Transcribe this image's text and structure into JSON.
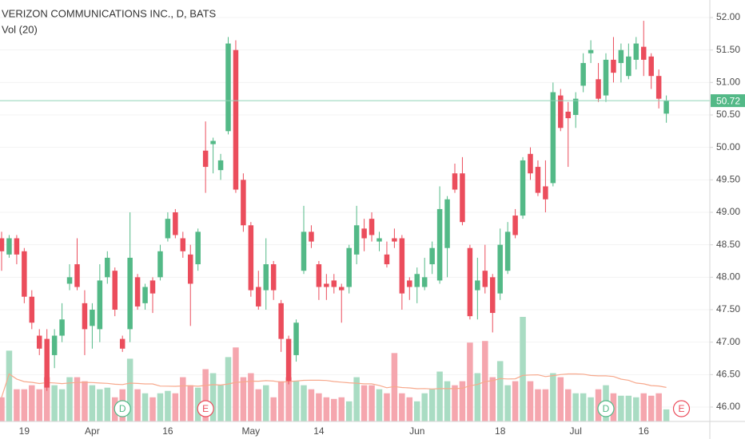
{
  "chart_data": {
    "type": "candlestick",
    "title": "VERIZON COMMUNICATIONS INC., D, BATS",
    "volume_title": "Vol (20)",
    "categories": [
      null,
      null,
      null,
      "19",
      null,
      null,
      null,
      null,
      null,
      null,
      null,
      null,
      "Apr",
      null,
      null,
      null,
      null,
      null,
      null,
      null,
      null,
      null,
      "16",
      null,
      null,
      null,
      null,
      null,
      null,
      null,
      null,
      null,
      null,
      "May",
      null,
      null,
      null,
      null,
      null,
      null,
      null,
      null,
      "14",
      null,
      null,
      null,
      null,
      null,
      null,
      null,
      null,
      null,
      null,
      null,
      null,
      "Jun",
      null,
      null,
      null,
      null,
      null,
      null,
      null,
      null,
      null,
      null,
      "18",
      null,
      null,
      null,
      null,
      null,
      null,
      null,
      null,
      null,
      "Jul",
      null,
      null,
      null,
      null,
      null,
      null,
      null,
      null,
      "16",
      null,
      null,
      null
    ],
    "open": [
      48.6,
      48.35,
      48.6,
      48.4,
      47.7,
      47.1,
      47.05,
      46.8,
      47.1,
      47.9,
      48.2,
      47.6,
      47.25,
      47.2,
      48.0,
      48.1,
      47.05,
      47.2,
      48.0,
      47.6,
      47.95,
      48.0,
      48.6,
      49.0,
      48.6,
      48.35,
      48.2,
      49.95,
      50.05,
      49.65,
      50.25,
      51.5,
      49.5,
      48.8,
      47.85,
      47.8,
      48.2,
      47.6,
      47.05,
      46.8,
      48.1,
      48.7,
      48.2,
      47.9,
      47.95,
      47.85,
      47.85,
      48.35,
      48.75,
      48.9,
      48.55,
      48.35,
      48.6,
      48.6,
      47.95,
      47.85,
      47.85,
      48.2,
      47.95,
      48.45,
      49.6,
      49.6,
      48.45,
      47.8,
      48.1,
      48.0,
      47.75,
      48.1,
      48.95,
      48.95,
      49.9,
      49.7,
      49.4,
      49.45,
      50.8,
      50.55,
      50.5,
      50.95,
      51.45,
      51.05,
      50.8,
      51.35,
      51.3,
      51.1,
      51.35,
      51.55,
      51.4,
      51.1,
      50.52
    ],
    "high": [
      48.7,
      48.65,
      48.65,
      48.45,
      47.8,
      47.2,
      47.2,
      47.2,
      47.6,
      48.2,
      48.6,
      47.8,
      47.6,
      48.2,
      48.4,
      48.15,
      47.1,
      49.0,
      48.05,
      47.9,
      48.0,
      48.5,
      49.0,
      49.05,
      48.7,
      48.5,
      48.75,
      50.4,
      50.15,
      49.9,
      51.7,
      51.65,
      49.6,
      48.85,
      48.1,
      48.6,
      48.25,
      47.65,
      47.1,
      47.35,
      49.1,
      48.8,
      48.25,
      48.05,
      48.05,
      47.9,
      48.5,
      49.1,
      48.9,
      49.0,
      48.7,
      48.55,
      48.75,
      48.65,
      48.0,
      48.15,
      48.3,
      48.55,
      49.4,
      49.25,
      49.75,
      49.85,
      48.5,
      48.3,
      48.5,
      48.05,
      48.75,
      48.85,
      49.05,
      49.85,
      50.0,
      49.8,
      49.8,
      51.0,
      50.9,
      50.7,
      50.85,
      51.45,
      51.65,
      51.3,
      51.45,
      51.7,
      51.6,
      51.6,
      51.7,
      51.95,
      51.45,
      51.2,
      50.8
    ],
    "low": [
      48.1,
      48.3,
      48.2,
      47.6,
      47.2,
      46.8,
      46.25,
      46.6,
      47.0,
      47.8,
      47.8,
      46.8,
      46.9,
      47.0,
      47.9,
      47.4,
      46.85,
      47.0,
      47.5,
      47.5,
      47.45,
      47.95,
      48.55,
      48.6,
      48.3,
      47.25,
      48.1,
      49.3,
      49.6,
      49.5,
      50.2,
      49.3,
      48.7,
      47.7,
      47.5,
      47.5,
      47.65,
      46.85,
      46.35,
      46.7,
      48.05,
      48.45,
      47.65,
      47.65,
      47.75,
      47.3,
      47.75,
      48.2,
      48.4,
      48.55,
      48.4,
      48.15,
      48.45,
      47.5,
      47.65,
      47.6,
      47.8,
      48.05,
      47.9,
      48.0,
      49.3,
      48.8,
      47.35,
      47.35,
      47.75,
      47.15,
      47.65,
      48.05,
      48.6,
      48.9,
      49.5,
      49.25,
      49.0,
      49.4,
      50.25,
      49.7,
      50.3,
      50.85,
      51.3,
      50.7,
      50.7,
      51.0,
      51.0,
      51.05,
      51.2,
      51.1,
      50.9,
      50.6,
      50.38
    ],
    "close": [
      48.4,
      48.6,
      48.35,
      47.7,
      47.3,
      46.9,
      46.3,
      47.1,
      47.35,
      48.0,
      47.85,
      47.2,
      47.5,
      47.95,
      48.3,
      47.5,
      46.9,
      48.3,
      47.55,
      47.85,
      47.75,
      48.4,
      48.9,
      48.65,
      48.4,
      47.9,
      48.7,
      49.7,
      50.1,
      49.8,
      51.6,
      49.35,
      48.8,
      47.8,
      47.55,
      48.2,
      47.8,
      47.05,
      46.4,
      47.3,
      48.7,
      48.55,
      47.85,
      47.85,
      47.85,
      47.8,
      48.45,
      48.8,
      48.6,
      48.65,
      48.6,
      48.2,
      48.55,
      47.75,
      47.85,
      48.05,
      48.0,
      48.45,
      49.05,
      49.2,
      49.35,
      48.85,
      47.4,
      47.95,
      47.85,
      47.45,
      48.5,
      48.7,
      48.65,
      49.8,
      49.6,
      49.3,
      49.2,
      50.85,
      50.3,
      50.45,
      50.75,
      51.3,
      51.5,
      50.75,
      51.35,
      51.15,
      51.5,
      51.4,
      51.6,
      51.35,
      51.1,
      50.75,
      50.72
    ],
    "volume": [
      30,
      88,
      40,
      40,
      45,
      40,
      55,
      45,
      40,
      55,
      55,
      50,
      45,
      40,
      42,
      30,
      40,
      78,
      40,
      35,
      30,
      35,
      38,
      35,
      55,
      45,
      42,
      65,
      60,
      45,
      80,
      92,
      55,
      60,
      40,
      45,
      30,
      50,
      55,
      50,
      45,
      40,
      35,
      30,
      28,
      30,
      25,
      55,
      45,
      45,
      40,
      35,
      85,
      35,
      30,
      25,
      35,
      40,
      62,
      50,
      45,
      50,
      98,
      60,
      100,
      55,
      75,
      45,
      50,
      130,
      50,
      40,
      40,
      60,
      55,
      40,
      35,
      35,
      30,
      40,
      45,
      35,
      32,
      32,
      30,
      35,
      32,
      35,
      15
    ],
    "up_color": "#53b987",
    "down_color": "#eb4d5c",
    "volume_up_color": "#a9dcc3",
    "volume_down_color": "#f5a6ae",
    "volume_ma_color": "#f7a98d",
    "volume_ma_period": 20,
    "ylim": [
      46,
      52
    ],
    "yticks": [
      {
        "value": 46,
        "label": "46.00"
      },
      {
        "value": 46.5,
        "label": "46.50"
      },
      {
        "value": 47,
        "label": "47.00"
      },
      {
        "value": 47.5,
        "label": "47.50"
      },
      {
        "value": 48,
        "label": "48.00"
      },
      {
        "value": 48.5,
        "label": "48.50"
      },
      {
        "value": 49,
        "label": "49.00"
      },
      {
        "value": 49.5,
        "label": "49.50"
      },
      {
        "value": 50,
        "label": "50.00"
      },
      {
        "value": 50.5,
        "label": "50.50"
      },
      {
        "value": 51,
        "label": "51.00"
      },
      {
        "value": 51.5,
        "label": "51.50"
      },
      {
        "value": 52,
        "label": "52.00"
      }
    ],
    "last_price": {
      "value": 50.72,
      "label": "50.72"
    },
    "events": [
      {
        "label": "D",
        "index": 16,
        "color": "#53b987"
      },
      {
        "label": "E",
        "index": 27,
        "color": "#eb4d5c"
      },
      {
        "label": "D",
        "index": 80,
        "color": "#53b987"
      },
      {
        "label": "E",
        "index": 90,
        "color": "#eb4d5c"
      }
    ]
  }
}
